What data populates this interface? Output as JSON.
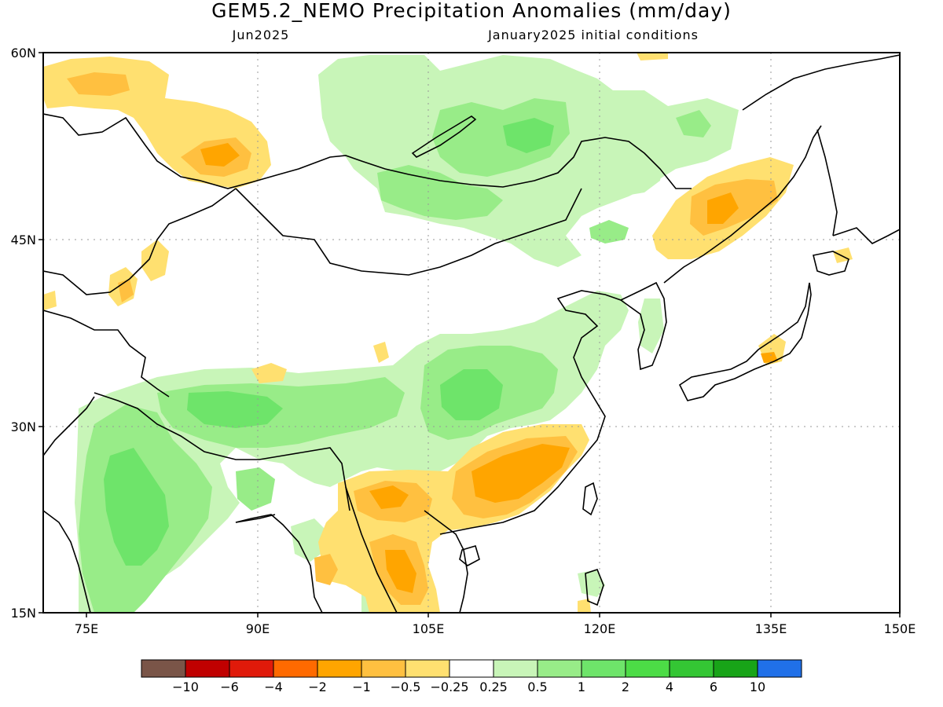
{
  "title": "GEM5.2_NEMO Precipitation Anomalies (mm/day)",
  "subtitle_left": "Jun2025",
  "subtitle_right": "January2025 initial conditions",
  "map": {
    "lat_labels": [
      "60N",
      "45N",
      "30N",
      "15N"
    ],
    "lon_labels": [
      "75E",
      "90E",
      "105E",
      "120E",
      "135E",
      "150E"
    ]
  },
  "legend": {
    "colors": [
      "#7a5548",
      "#c00000",
      "#e01a0a",
      "#ff6a00",
      "#ffa500",
      "#ffc040",
      "#ffe070",
      "#ffffff",
      "#c8f5b8",
      "#98ec88",
      "#6ee46a",
      "#4cdc46",
      "#34c634",
      "#18a418",
      "#2070e8"
    ],
    "labels": [
      "-10",
      "-6",
      "-4",
      "-2",
      "-1",
      "-0.5",
      "-0.25",
      "0.25",
      "0.5",
      "1",
      "2",
      "4",
      "6",
      "10"
    ]
  },
  "colors": {
    "dry_light": "#ffe070",
    "dry_mid": "#ffc040",
    "dry_strong": "#ffa500",
    "wet_light": "#c8f5b8",
    "wet_mid": "#98ec88",
    "wet_strong": "#6ee46a"
  }
}
